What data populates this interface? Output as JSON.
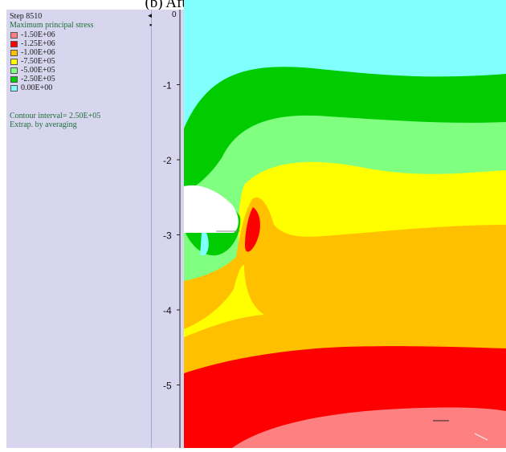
{
  "caption": "(b) After the right wall is supported",
  "panel": {
    "step": "Step 8510",
    "title": "Maximum principal stress",
    "legend": [
      {
        "label": "-1.50E+06",
        "color": "#ff8080"
      },
      {
        "label": "-1.25E+06",
        "color": "#ff0000"
      },
      {
        "label": "-1.00E+06",
        "color": "#ffc000"
      },
      {
        "label": "-7.50E+05",
        "color": "#ffff00"
      },
      {
        "label": "-5.00E+05",
        "color": "#80ff80"
      },
      {
        "label": "-2.50E+05",
        "color": "#00cc00"
      },
      {
        "label": "0.00E+00",
        "color": "#80ffff"
      }
    ],
    "contour_interval": "Contour interval=  2.50E+05",
    "extrapolation": "Extrap. by averaging"
  },
  "axis": {
    "ticks": [
      {
        "label": "-1",
        "y": -1
      },
      {
        "label": "-2",
        "y": -2
      },
      {
        "label": "-3",
        "y": -3
      },
      {
        "label": "-4",
        "y": -4
      },
      {
        "label": "-5",
        "y": -5
      }
    ],
    "top_mark": "0"
  },
  "colors": {
    "panel_bg": "#d8d6ee",
    "legend_text": "#1e6f3a"
  }
}
